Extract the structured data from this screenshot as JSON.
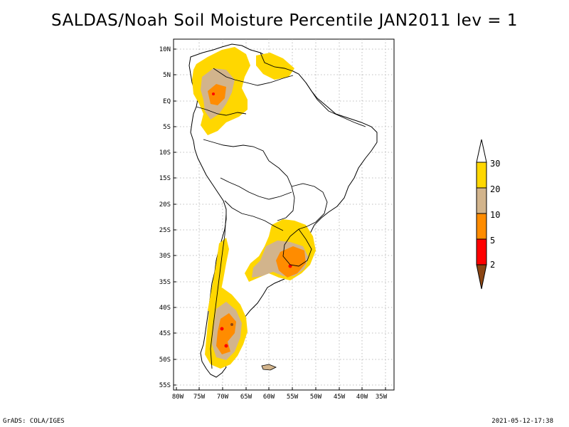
{
  "title": "SALDAS/Noah Soil Moisture Percentile JAN2011 lev = 1",
  "map": {
    "lat_labels": [
      "10N",
      "5N",
      "EQ",
      "5S",
      "10S",
      "15S",
      "20S",
      "25S",
      "30S",
      "35S",
      "40S",
      "45S",
      "50S",
      "55S"
    ],
    "lon_labels": [
      "80W",
      "75W",
      "70W",
      "65W",
      "60W",
      "55W",
      "50W",
      "45W",
      "40W",
      "35W"
    ],
    "grid": true,
    "region": "South America"
  },
  "colorbar": {
    "labels": [
      "30",
      "20",
      "10",
      "5",
      "2"
    ],
    "colors": {
      "above_30": "#ffffff",
      "band_20_30": "#ffd700",
      "band_10_20": "#d2b48c",
      "band_5_10": "#ff8c00",
      "band_2_5": "#ff0000",
      "below_2": "#8b4513"
    }
  },
  "footer": {
    "left": "GrADS: COLA/IGES",
    "right": "2021-05-12-17:38"
  }
}
